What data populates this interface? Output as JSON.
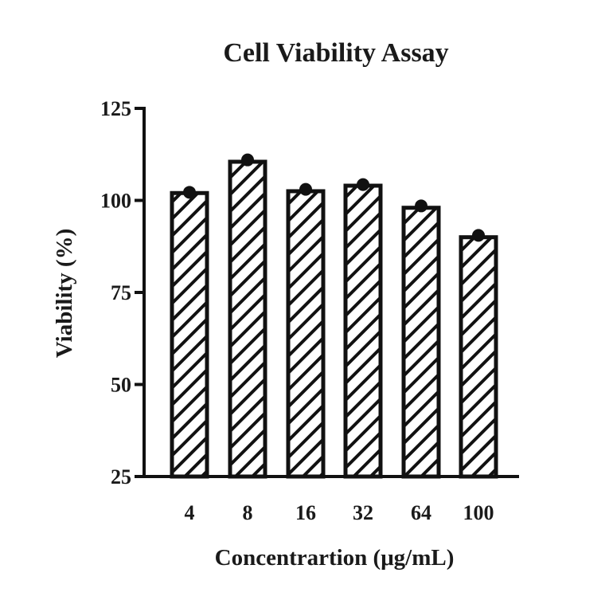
{
  "chart_data": {
    "type": "bar",
    "title": "Cell Viability Assay",
    "xlabel": "Concentrartion (μg/mL)",
    "ylabel": "Viability (%)",
    "categories": [
      "4",
      "8",
      "16",
      "32",
      "64",
      "100"
    ],
    "values": [
      102,
      110.5,
      102.5,
      104,
      98,
      90
    ],
    "points": [
      102.2,
      111,
      103,
      104.3,
      98.5,
      90.5
    ],
    "ylim": [
      25,
      125
    ],
    "yticks": [
      25,
      50,
      75,
      100,
      125
    ],
    "ytick_labels": [
      "25",
      "50",
      "75",
      "100",
      "125"
    ],
    "grid": false,
    "legend": "none",
    "bar_fill": "diagonal-hatch",
    "colors": {
      "stroke": "#111111",
      "background": "#ffffff"
    }
  }
}
